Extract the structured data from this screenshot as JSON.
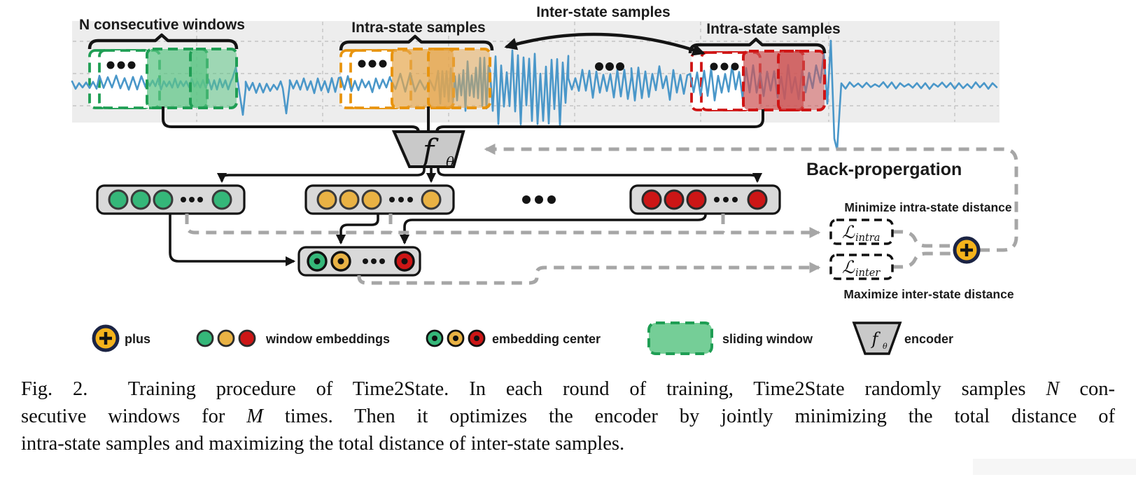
{
  "figure": {
    "annotations": {
      "n_windows": "N consecutive windows",
      "intra_left": "Intra-state samples",
      "inter": "Inter-state samples",
      "intra_right": "Intra-state samples",
      "backprop": "Back-propergation",
      "minimize": "Minimize intra-state distance",
      "maximize": "Maximize inter-state distance"
    },
    "encoder": {
      "symbol": "f",
      "subscript": "θ"
    },
    "losses": {
      "intra": {
        "symbol": "ℒ",
        "subscript": "intra"
      },
      "inter": {
        "symbol": "ℒ",
        "subscript": "inter"
      }
    },
    "legend": {
      "items": [
        {
          "icon": "plus-icon",
          "label": "plus"
        },
        {
          "icon": "window-embeddings-icon",
          "label": "window embeddings"
        },
        {
          "icon": "embedding-center-icon",
          "label": "embedding center"
        },
        {
          "icon": "sliding-window-icon",
          "label": "sliding window"
        },
        {
          "icon": "encoder-icon",
          "label": "encoder"
        }
      ]
    },
    "colors": {
      "signal_blue": "#4a97c9",
      "state_green": "#1f9e54",
      "state_orange": "#e8940e",
      "state_red": "#cf1414",
      "embedding_green": "#35b779",
      "embedding_orange": "#e9b244",
      "embedding_red": "#cc1616",
      "backprop_gray": "#a6a6a6",
      "plus_gold": "#f5b31b",
      "plus_navy": "#1b2444"
    }
  },
  "caption": {
    "lines": [
      [
        {
          "text": "Fig. 2.  Training procedure of Time2State. In each round of training, Time2State randomly samples "
        },
        {
          "text": "N",
          "italic": true
        },
        {
          "text": " con-"
        }
      ],
      [
        {
          "text": "secutive windows for "
        },
        {
          "text": "M",
          "italic": true
        },
        {
          "text": " times. Then it optimizes the encoder by jointly minimizing the total distance of"
        }
      ],
      [
        {
          "text": "intra-state samples and maximizing the total distance of inter-state samples."
        }
      ]
    ]
  }
}
